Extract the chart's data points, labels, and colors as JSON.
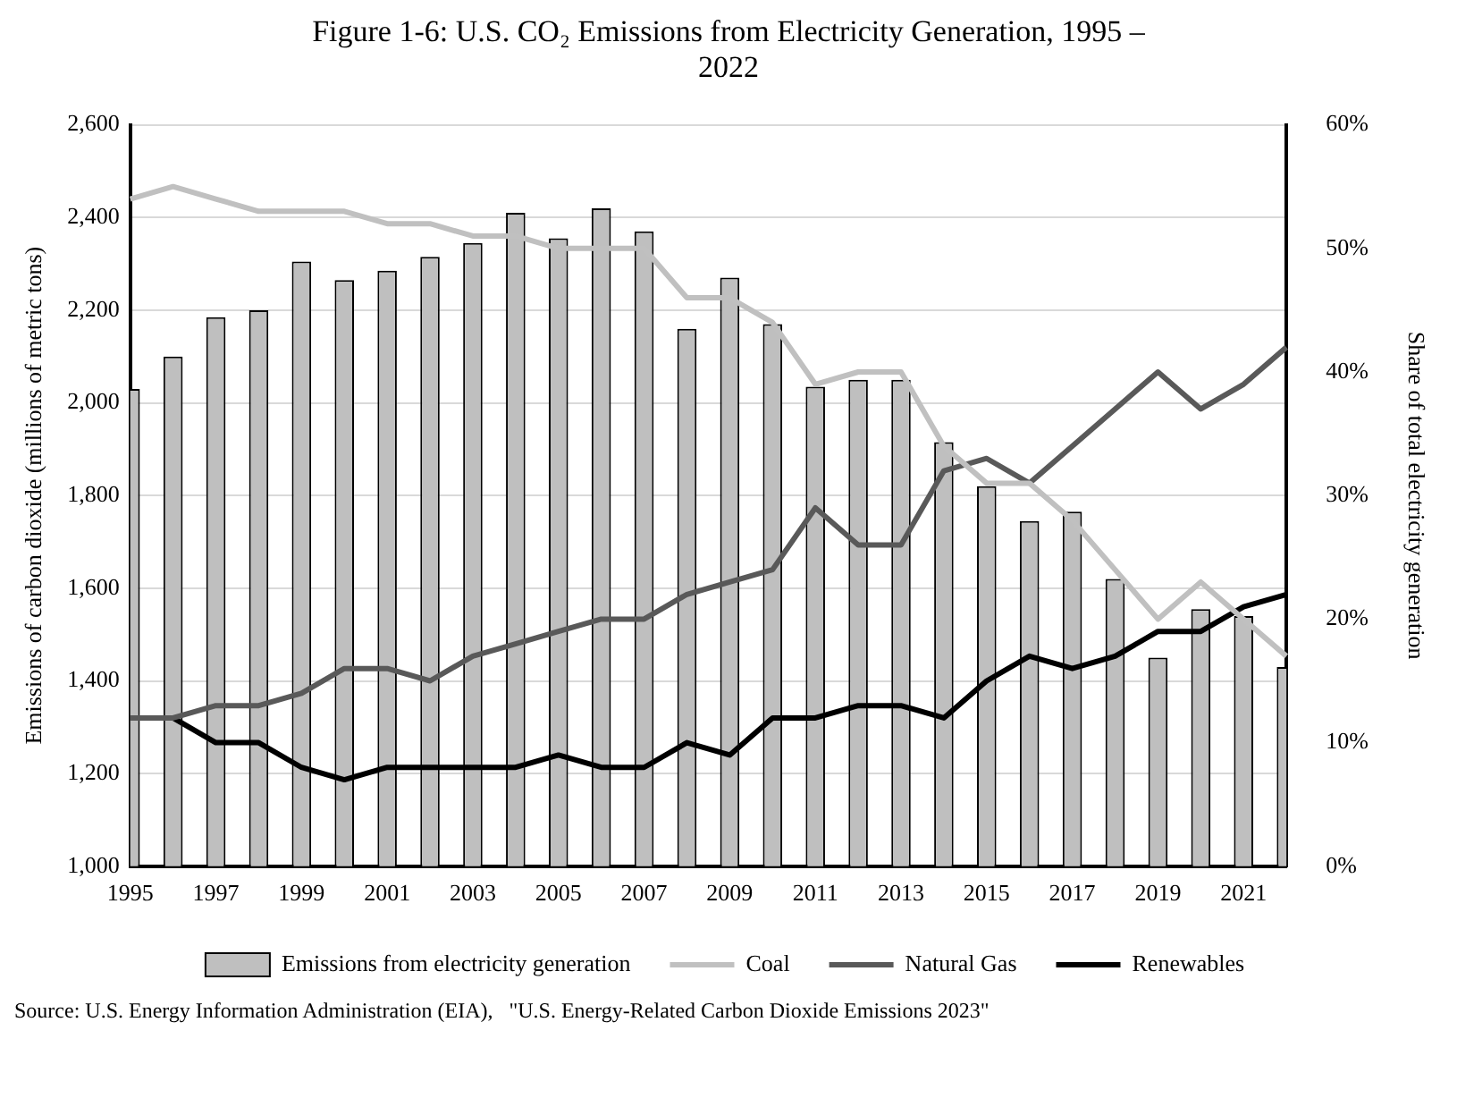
{
  "chart_data": {
    "type": "bar",
    "title": "Figure 1-6: U.S. CO₂ Emissions from Electricity Generation, 1995 – 2022",
    "ylabel": "Emissions of carbon dioxide (millions of metric tons)",
    "y2label": "Share of total electricity generation",
    "categories": [
      "1995",
      null,
      "1997",
      null,
      "1999",
      null,
      "2001",
      null,
      "2003",
      null,
      "2005",
      null,
      "2007",
      null,
      "2009",
      null,
      "2011",
      null,
      "2013",
      null,
      "2015",
      null,
      "2017",
      null,
      "2019",
      null,
      "2021",
      null
    ],
    "series": [
      {
        "name": "Emissions from electricity generation",
        "color": "#bfbfbf",
        "values": [
          2030,
          2100,
          2185,
          2200,
          2305,
          2265,
          2285,
          2315,
          2345,
          2410,
          2355,
          2420,
          2370,
          2160,
          2270,
          2170,
          2035,
          2050,
          2050,
          1915,
          1820,
          1745,
          1765,
          1620,
          1450,
          1555,
          1540,
          1430
        ]
      },
      {
        "type": "line",
        "name": "Coal",
        "color": "#c0c0c0",
        "axis": "y2",
        "values": [
          54,
          55,
          54,
          53,
          53,
          53,
          52,
          52,
          51,
          51,
          50,
          50,
          50,
          46,
          46,
          44,
          39,
          40,
          40,
          34,
          31,
          31,
          28,
          24,
          20,
          23,
          20,
          17
        ]
      },
      {
        "type": "line",
        "name": "Natural Gas",
        "color": "#595959",
        "axis": "y2",
        "values": [
          12,
          12,
          13,
          13,
          14,
          16,
          16,
          15,
          17,
          18,
          19,
          20,
          20,
          22,
          23,
          24,
          29,
          26,
          26,
          32,
          33,
          31,
          34,
          37,
          40,
          37,
          39,
          42
        ]
      },
      {
        "type": "line",
        "name": "Renewables",
        "color": "#000000",
        "axis": "y2",
        "values": [
          12,
          12,
          10,
          10,
          8,
          7,
          8,
          8,
          8,
          8,
          9,
          8,
          8,
          10,
          9,
          12,
          12,
          13,
          13,
          12,
          15,
          17,
          16,
          17,
          19,
          19,
          21,
          22
        ]
      }
    ],
    "ylim": [
      1000,
      2600
    ],
    "yticks": [
      {
        "value": 1000,
        "label": "1,000"
      },
      {
        "value": 1200,
        "label": "1,200"
      },
      {
        "value": 1400,
        "label": "1,400"
      },
      {
        "value": 1600,
        "label": "1,600"
      },
      {
        "value": 1800,
        "label": "1,800"
      },
      {
        "value": 2000,
        "label": "2,000"
      },
      {
        "value": 2200,
        "label": "2,200"
      },
      {
        "value": 2400,
        "label": "2,400"
      },
      {
        "value": 2600,
        "label": "2,600"
      }
    ],
    "y2lim": [
      0,
      60
    ],
    "y2ticks": [
      {
        "value": 0,
        "label": "0%"
      },
      {
        "value": 10,
        "label": "10%"
      },
      {
        "value": 20,
        "label": "20%"
      },
      {
        "value": 30,
        "label": "30%"
      },
      {
        "value": 40,
        "label": "40%"
      },
      {
        "value": 50,
        "label": "50%"
      },
      {
        "value": 60,
        "label": "60%"
      }
    ],
    "grid": "y",
    "legend": "bottom",
    "marker": "none",
    "annotations": [
      "Source: U.S. Energy Information Administration (EIA),   \"U.S. Energy-Related Carbon Dioxide Emissions 2023\""
    ]
  }
}
